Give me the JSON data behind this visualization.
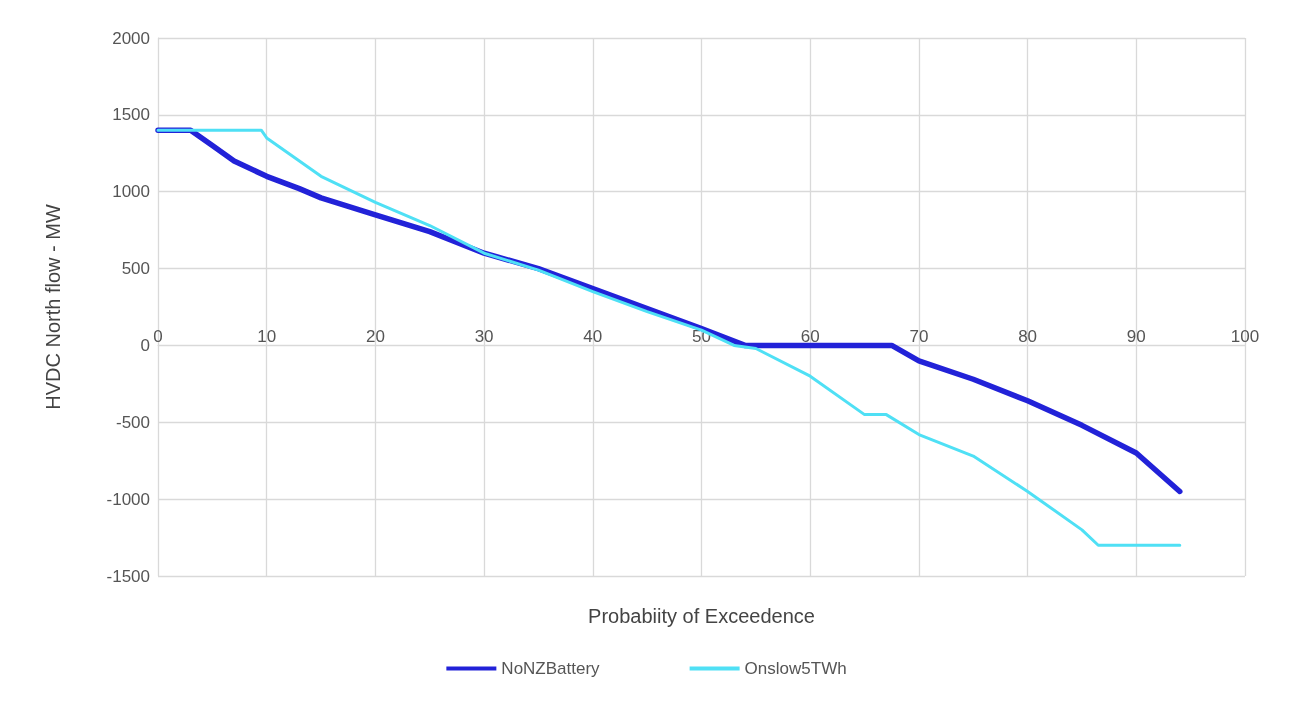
{
  "chart_data": {
    "type": "line",
    "xlabel": "Probabiity of Exceedence",
    "ylabel": "HVDC North flow - MW",
    "xlim": [
      0,
      100
    ],
    "xticks": [
      0,
      10,
      20,
      30,
      40,
      50,
      60,
      70,
      80,
      90,
      100
    ],
    "ylim": [
      -1500,
      2000
    ],
    "yticks": [
      -1500,
      -1000,
      -500,
      0,
      500,
      1000,
      1500,
      2000
    ],
    "grid": true,
    "legend": "bottom",
    "marker": "none",
    "line_style": "solid",
    "series": [
      {
        "name": "NoNZBattery",
        "color": "#2222d8",
        "x": [
          0,
          3,
          5,
          7,
          10,
          13,
          15,
          20,
          25,
          30,
          35,
          40,
          45,
          50,
          54,
          67.5,
          70,
          75,
          80,
          85,
          90,
          94
        ],
        "values": [
          1400,
          1400,
          1300,
          1200,
          1100,
          1020,
          960,
          850,
          740,
          600,
          500,
          370,
          240,
          110,
          0,
          0,
          -100,
          -220,
          -360,
          -520,
          -700,
          -950
        ]
      },
      {
        "name": "Onslow5TWh",
        "color": "#4fe0f5",
        "x": [
          0,
          9.5,
          10,
          15,
          20,
          25,
          30,
          35,
          40,
          45,
          50,
          53,
          55,
          60,
          65,
          67,
          70,
          75,
          80,
          85,
          86.5,
          94
        ],
        "values": [
          1400,
          1400,
          1350,
          1100,
          930,
          780,
          600,
          490,
          350,
          220,
          100,
          0,
          -20,
          -200,
          -450,
          -450,
          -580,
          -720,
          -950,
          -1200,
          -1300,
          -1300
        ]
      }
    ]
  }
}
